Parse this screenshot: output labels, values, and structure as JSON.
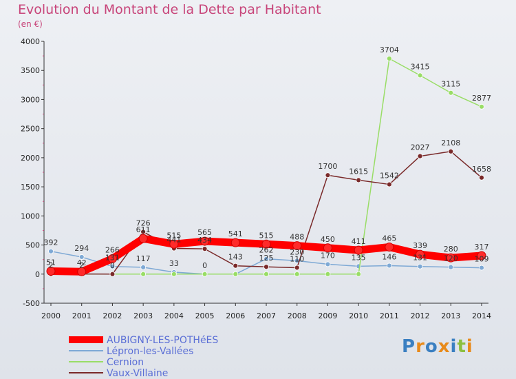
{
  "chart_data": {
    "type": "line",
    "title": "Evolution du Montant de la Dette par Habitant",
    "subtitle": "(en €)",
    "x": [
      2000,
      2001,
      2002,
      2003,
      2004,
      2005,
      2006,
      2007,
      2008,
      2009,
      2010,
      2011,
      2012,
      2013,
      2014
    ],
    "ylim": [
      -500,
      4000
    ],
    "yticks": [
      -500,
      0,
      500,
      1000,
      1500,
      2000,
      2500,
      3000,
      3500,
      4000
    ],
    "grid": false,
    "legend_position": "bottom-left",
    "series": [
      {
        "name": "AUBIGNY-LES-POTHéES",
        "color": "#ff0000",
        "values": [
          51,
          42,
          266,
          611,
          515,
          565,
          541,
          515,
          488,
          450,
          411,
          465,
          339,
          280,
          317
        ]
      },
      {
        "name": "Lépron-les-Vallées",
        "color": "#7ea9d5",
        "values": [
          392,
          294,
          131,
          117,
          33,
          0,
          0,
          262,
          230,
          170,
          135,
          146,
          131,
          120,
          109
        ]
      },
      {
        "name": "Cernion",
        "color": "#99dd66",
        "values": [
          0,
          0,
          0,
          0,
          0,
          0,
          0,
          0,
          0,
          0,
          0,
          3704,
          3415,
          3115,
          2877
        ]
      },
      {
        "name": "Vaux-Villaine",
        "color": "#7a2a2a",
        "values": [
          2,
          2,
          0,
          726,
          441,
          434,
          143,
          125,
          110,
          1700,
          1615,
          1542,
          2027,
          2108,
          1658
        ]
      }
    ],
    "data_labels": [
      {
        "year": 2000,
        "text": "51"
      },
      {
        "year": 2001,
        "text": "42"
      },
      {
        "year": 2002,
        "text": "266"
      },
      {
        "year": 2003,
        "text": "611"
      },
      {
        "year": 2004,
        "text": "515"
      },
      {
        "year": 2005,
        "text": "565"
      },
      {
        "year": 2006,
        "text": "541"
      },
      {
        "year": 2007,
        "text": "515"
      },
      {
        "year": 2008,
        "text": "488"
      },
      {
        "year": 2009,
        "text": "450"
      },
      {
        "year": 2010,
        "text": "411"
      },
      {
        "year": 2011,
        "text": "465"
      },
      {
        "year": 2012,
        "text": "339"
      },
      {
        "year": 2013,
        "text": "280"
      },
      {
        "year": 2014,
        "text": "317"
      },
      {
        "year": 2000,
        "text": "392"
      },
      {
        "year": 2001,
        "text": "294"
      },
      {
        "year": 2002,
        "text": "131"
      },
      {
        "year": 2003,
        "text": "117"
      },
      {
        "year": 2004,
        "text": "33"
      },
      {
        "year": 2005,
        "text": "0"
      },
      {
        "year": 2007,
        "text": "262"
      },
      {
        "year": 2008,
        "text": "230"
      },
      {
        "year": 2009,
        "text": "170"
      },
      {
        "year": 2010,
        "text": "135"
      },
      {
        "year": 2011,
        "text": "146"
      },
      {
        "year": 2012,
        "text": "131"
      },
      {
        "year": 2013,
        "text": "120"
      },
      {
        "year": 2014,
        "text": "109"
      },
      {
        "year": 2011,
        "text": "3704"
      },
      {
        "year": 2012,
        "text": "3415"
      },
      {
        "year": 2013,
        "text": "3115"
      },
      {
        "year": 2014,
        "text": "2877"
      },
      {
        "year": 2000,
        "text": "2"
      },
      {
        "year": 2001,
        "text": "2"
      },
      {
        "year": 2002,
        "text": "0"
      },
      {
        "year": 2003,
        "text": "726"
      },
      {
        "year": 2004,
        "text": "441"
      },
      {
        "year": 2005,
        "text": "434"
      },
      {
        "year": 2006,
        "text": "143"
      },
      {
        "year": 2007,
        "text": "125"
      },
      {
        "year": 2008,
        "text": "110"
      },
      {
        "year": 2009,
        "text": "1700"
      },
      {
        "year": 2010,
        "text": "1615"
      },
      {
        "year": 2011,
        "text": "1542"
      },
      {
        "year": 2012,
        "text": "2027"
      },
      {
        "year": 2013,
        "text": "2108"
      },
      {
        "year": 2014,
        "text": "1658"
      }
    ]
  },
  "brand": {
    "letters": [
      "P",
      "r",
      "o",
      "x",
      "i",
      "t",
      "i"
    ],
    "colors": [
      "#3a7fc1",
      "#e88a1a",
      "#3a7fc1",
      "#e88a1a",
      "#3a7fc1",
      "#8cbf3f",
      "#e88a1a"
    ]
  }
}
